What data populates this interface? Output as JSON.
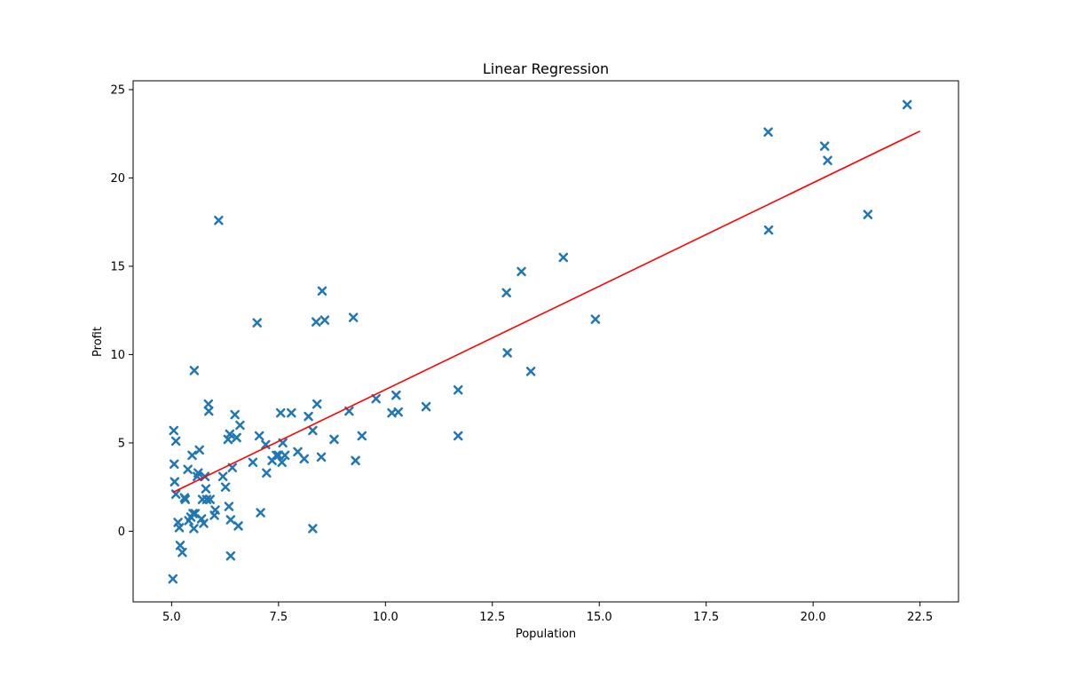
{
  "chart_data": {
    "type": "scatter",
    "title": "Linear Regression",
    "xlabel": "Population",
    "ylabel": "Profit",
    "xlim": [
      4.1,
      23.4
    ],
    "ylim": [
      -4.0,
      25.5
    ],
    "x_ticks": [
      5.0,
      7.5,
      10.0,
      12.5,
      15.0,
      17.5,
      20.0,
      22.5
    ],
    "x_tick_labels": [
      "5.0",
      "7.5",
      "10.0",
      "12.5",
      "15.0",
      "17.5",
      "20.0",
      "22.5"
    ],
    "y_ticks": [
      0,
      5,
      10,
      15,
      20,
      25
    ],
    "y_tick_labels": [
      "0",
      "5",
      "10",
      "15",
      "20",
      "25"
    ],
    "grid": false,
    "colors": {
      "points": "#1f77b4",
      "line": "#ff0000",
      "axes": "#000000"
    },
    "points": [
      [
        5.03,
        -2.7
      ],
      [
        5.05,
        5.7
      ],
      [
        5.06,
        3.8
      ],
      [
        5.07,
        2.8
      ],
      [
        5.1,
        5.1
      ],
      [
        5.1,
        2.1
      ],
      [
        5.15,
        0.5
      ],
      [
        5.18,
        0.2
      ],
      [
        5.2,
        -0.8
      ],
      [
        5.25,
        -1.2
      ],
      [
        5.3,
        1.9
      ],
      [
        5.32,
        1.8
      ],
      [
        5.38,
        3.5
      ],
      [
        5.4,
        0.6
      ],
      [
        5.45,
        0.8
      ],
      [
        5.48,
        4.3
      ],
      [
        5.5,
        1.0
      ],
      [
        5.52,
        0.15
      ],
      [
        5.53,
        9.1
      ],
      [
        5.55,
        1.0
      ],
      [
        5.6,
        3.1
      ],
      [
        5.62,
        3.3
      ],
      [
        5.65,
        4.6
      ],
      [
        5.7,
        0.7
      ],
      [
        5.72,
        1.8
      ],
      [
        5.75,
        0.45
      ],
      [
        5.78,
        3.1
      ],
      [
        5.8,
        2.4
      ],
      [
        5.82,
        1.8
      ],
      [
        5.86,
        7.2
      ],
      [
        5.87,
        6.8
      ],
      [
        5.9,
        1.8
      ],
      [
        6.0,
        0.9
      ],
      [
        6.02,
        1.2
      ],
      [
        6.1,
        17.6
      ],
      [
        6.2,
        3.1
      ],
      [
        6.26,
        2.5
      ],
      [
        6.32,
        5.2
      ],
      [
        6.34,
        1.4
      ],
      [
        6.36,
        5.5
      ],
      [
        6.38,
        0.65
      ],
      [
        6.38,
        -1.4
      ],
      [
        6.42,
        3.6
      ],
      [
        6.48,
        6.6
      ],
      [
        6.52,
        5.3
      ],
      [
        6.56,
        0.3
      ],
      [
        6.6,
        6.0
      ],
      [
        6.9,
        3.9
      ],
      [
        7.0,
        11.8
      ],
      [
        7.05,
        5.4
      ],
      [
        7.08,
        1.05
      ],
      [
        7.2,
        4.9
      ],
      [
        7.22,
        3.3
      ],
      [
        7.35,
        4.0
      ],
      [
        7.45,
        4.3
      ],
      [
        7.5,
        4.3
      ],
      [
        7.55,
        6.7
      ],
      [
        7.58,
        3.9
      ],
      [
        7.6,
        5.0
      ],
      [
        7.65,
        4.3
      ],
      [
        7.8,
        6.7
      ],
      [
        7.95,
        4.5
      ],
      [
        8.1,
        4.1
      ],
      [
        8.2,
        6.5
      ],
      [
        8.3,
        5.7
      ],
      [
        8.3,
        0.15
      ],
      [
        8.38,
        11.85
      ],
      [
        8.4,
        7.2
      ],
      [
        8.5,
        4.2
      ],
      [
        8.52,
        13.6
      ],
      [
        8.58,
        11.95
      ],
      [
        8.8,
        5.2
      ],
      [
        9.15,
        6.8
      ],
      [
        9.25,
        12.1
      ],
      [
        9.3,
        4.0
      ],
      [
        9.45,
        5.4
      ],
      [
        9.78,
        7.5
      ],
      [
        10.15,
        6.7
      ],
      [
        10.25,
        7.7
      ],
      [
        10.3,
        6.75
      ],
      [
        10.95,
        7.05
      ],
      [
        11.7,
        8.0
      ],
      [
        11.7,
        5.4
      ],
      [
        12.83,
        13.5
      ],
      [
        12.85,
        10.1
      ],
      [
        13.18,
        14.7
      ],
      [
        13.4,
        9.05
      ],
      [
        14.16,
        15.5
      ],
      [
        14.91,
        12.0
      ],
      [
        18.95,
        22.6
      ],
      [
        18.96,
        17.05
      ],
      [
        20.27,
        21.8
      ],
      [
        20.34,
        20.99
      ],
      [
        21.28,
        17.93
      ],
      [
        22.2,
        24.15
      ]
    ],
    "regression_line": {
      "x": [
        5.03,
        22.5
      ],
      "y": [
        2.2,
        22.65
      ]
    }
  }
}
